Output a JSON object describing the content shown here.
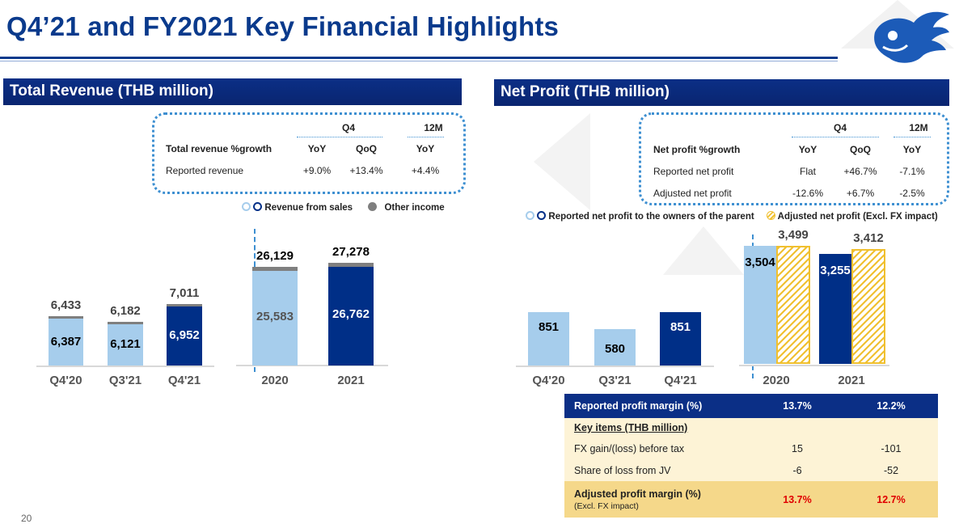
{
  "title": "Q4’21 and FY2021 Key Financial Highlights",
  "page_number": "20",
  "colors": {
    "navy": "#002f87",
    "light_blue": "#a6cdec",
    "other_income": "#7f7f7f",
    "gold": "#f0c030",
    "table_header": "#0b2f86",
    "table_row": "#fdf3d6",
    "table_highlight": "#f5d88a",
    "red": "#e00000"
  },
  "revenue": {
    "header": "Total Revenue (THB million)",
    "growth_table": {
      "group_q4": "Q4",
      "group_12m": "12M",
      "row_label": "Total revenue %growth",
      "cols": [
        "YoY",
        "QoQ",
        "YoY"
      ],
      "rows": [
        {
          "label": "Reported revenue",
          "values": [
            "+9.0%",
            "+13.4%",
            "+4.4%"
          ]
        }
      ]
    },
    "legend": {
      "sales": "Revenue from sales",
      "other": "Other income"
    }
  },
  "net_profit": {
    "header": "Net Profit (THB million)",
    "growth_table": {
      "group_q4": "Q4",
      "group_12m": "12M",
      "row_label": "Net profit %growth",
      "cols": [
        "YoY",
        "QoQ",
        "YoY"
      ],
      "rows": [
        {
          "label": "Reported net profit",
          "values": [
            "Flat",
            "+46.7%",
            "-7.1%"
          ]
        },
        {
          "label": "Adjusted net profit",
          "values": [
            "-12.6%",
            "+6.7%",
            "-2.5%"
          ]
        }
      ]
    },
    "legend": {
      "reported": "Reported net profit to the owners of the parent",
      "adjusted": "Adjusted net profit (Excl. FX impact)"
    }
  },
  "margin_table": {
    "header": {
      "label": "Reported profit margin (%)",
      "values": [
        "13.7%",
        "12.2%"
      ]
    },
    "key_items_label": "Key items (THB million)",
    "rows": [
      {
        "label": "FX gain/(loss) before tax",
        "values": [
          "15",
          "-101"
        ]
      },
      {
        "label": "Share of loss from JV",
        "values": [
          "-6",
          "-52"
        ]
      }
    ],
    "adjusted": {
      "label": "Adjusted profit margin (%)",
      "sublabel": "(Excl. FX impact)",
      "values": [
        "13.7%",
        "12.7%"
      ]
    }
  },
  "chart_data": [
    {
      "type": "bar",
      "title": "Total Revenue (THB million)",
      "stacked": true,
      "categories": [
        "Q4'20",
        "Q3'21",
        "Q4'21",
        "2020",
        "2021"
      ],
      "series": [
        {
          "name": "Revenue from sales",
          "values": [
            6387,
            6121,
            6952,
            25583,
            26762
          ]
        },
        {
          "name": "Other income",
          "values": [
            46,
            61,
            59,
            546,
            516
          ]
        }
      ],
      "totals": [
        6433,
        6182,
        7011,
        26129,
        27278
      ],
      "labels": {
        "sales": [
          "6,387",
          "6,121",
          "6,952",
          "25,583",
          "26,762"
        ],
        "totals": [
          "6,433",
          "6,182",
          "7,011",
          "26,129",
          "27,278"
        ]
      },
      "highlight": [
        "Q4'21",
        "2021"
      ]
    },
    {
      "type": "bar",
      "title": "Net Profit (THB million)",
      "categories": [
        "Q4'20",
        "Q3'21",
        "Q4'21",
        "2020",
        "2021"
      ],
      "series": [
        {
          "name": "Reported net profit to the owners of the parent",
          "values": [
            851,
            580,
            851,
            3504,
            3255
          ],
          "labels": [
            "851",
            "580",
            "851",
            "3,504",
            "3,255"
          ]
        },
        {
          "name": "Adjusted net profit (Excl. FX impact)",
          "values": [
            null,
            null,
            null,
            3499,
            3412
          ],
          "labels": [
            "",
            "",
            "",
            "3,499",
            "3,412"
          ]
        }
      ],
      "highlight": [
        "Q4'21",
        "2021"
      ]
    }
  ]
}
